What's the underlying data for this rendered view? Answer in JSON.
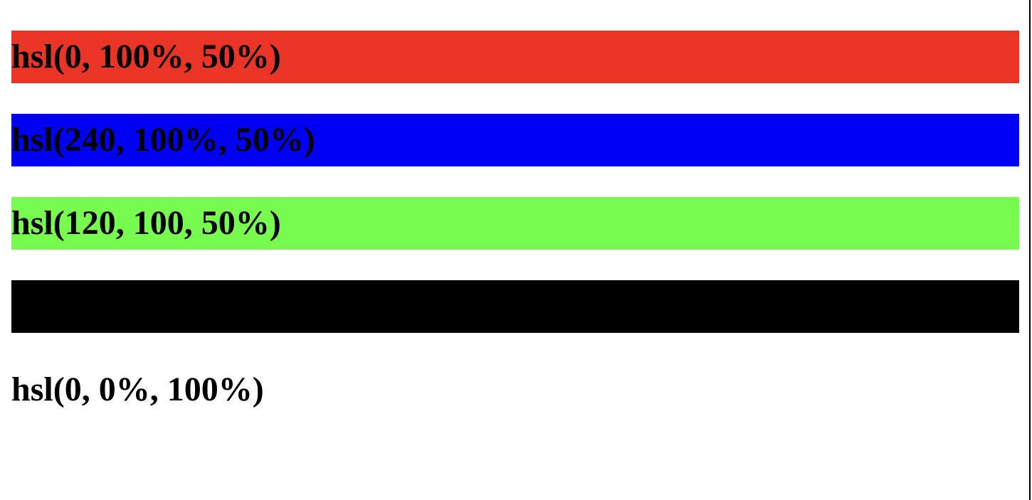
{
  "swatches": [
    {
      "label": "hsl(0, 100%, 50%)",
      "color": "#ea3425"
    },
    {
      "label": "hsl(240, 100%, 50%)",
      "color": "#0000f5"
    },
    {
      "label": "hsl(120, 100, 50%)",
      "color": "#76fb4e"
    },
    {
      "label": "",
      "color": "#000000"
    },
    {
      "label": "hsl(0, 0%, 100%)",
      "color": "#ffffff"
    }
  ]
}
